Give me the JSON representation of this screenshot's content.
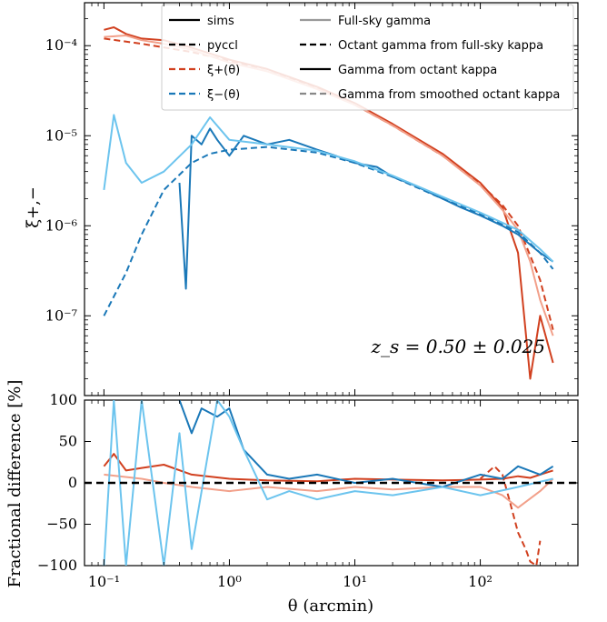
{
  "chart_data": {
    "type": "line",
    "xscale": "log",
    "xlim": [
      0.07,
      600
    ],
    "xlabel": "θ (arcmin)",
    "x_ticks": [
      "10⁻¹",
      "10⁰",
      "10¹",
      "10²"
    ],
    "annotation": "z_s = 0.50 ± 0.025",
    "legend_placement": "top-right",
    "legend": [
      {
        "label": "sims",
        "color": "#000000",
        "dash": "solid"
      },
      {
        "label": "pyccl",
        "color": "#000000",
        "dash": "dashed"
      },
      {
        "label": "ξ+(θ)",
        "color": "#d1401f",
        "dash": "dashed"
      },
      {
        "label": "ξ−(θ)",
        "color": "#1a78b8",
        "dash": "dashed"
      },
      {
        "label": "Full-sky gamma",
        "color": "#999999",
        "dash": "solid"
      },
      {
        "label": "Octant gamma from full-sky kappa",
        "color": "#000000",
        "dash": "dashed"
      },
      {
        "label": "Gamma from octant kappa",
        "color": "#000000",
        "dash": "solid"
      },
      {
        "label": "Gamma from smoothed octant kappa",
        "color": "#888888",
        "dash": "dashed"
      }
    ],
    "top_panel": {
      "ylabel": "ξ+,−",
      "yscale": "log",
      "ylim": [
        1.3e-08,
        0.0003
      ],
      "y_ticks": [
        "10⁻⁷",
        "10⁻⁶",
        "10⁻⁵",
        "10⁻⁴"
      ],
      "series": [
        {
          "name": "ξ+(θ)",
          "role": "pyccl",
          "color": "#d1401f",
          "dash": "dashed",
          "x": [
            0.1,
            0.2,
            0.5,
            1,
            2,
            5,
            10,
            20,
            50,
            100,
            150,
            200,
            300,
            380
          ],
          "y": [
            0.00012,
            0.000105,
            8.5e-05,
            6.8e-05,
            5.2e-05,
            3.4e-05,
            2.2e-05,
            1.3e-05,
            6e-06,
            2.9e-06,
            1.7e-06,
            1e-06,
            2.5e-07,
            7e-08
          ]
        },
        {
          "name": "ξ+(θ)",
          "role": "sims",
          "color": "#d1401f",
          "dash": "solid",
          "x": [
            0.1,
            0.12,
            0.15,
            0.2,
            0.3,
            0.5,
            1,
            2,
            5,
            10,
            20,
            50,
            100,
            150,
            200,
            250,
            300,
            380
          ],
          "y": [
            0.00015,
            0.00016,
            0.000135,
            0.00012,
            0.000115,
            9.5e-05,
            7e-05,
            5.5e-05,
            3.5e-05,
            2.3e-05,
            1.35e-05,
            6.3e-06,
            3e-06,
            1.6e-06,
            5e-07,
            2e-08,
            1e-07,
            3e-08
          ]
        },
        {
          "name": "ξ+(θ)",
          "role": "smoothed",
          "color": "#f2a08a",
          "dash": "solid",
          "x": [
            0.1,
            0.15,
            0.2,
            0.3,
            0.5,
            1,
            2,
            5,
            10,
            20,
            50,
            100,
            150,
            200,
            250,
            300,
            380
          ],
          "y": [
            0.000125,
            0.00013,
            0.000115,
            0.000105,
            9e-05,
            6.5e-05,
            5.2e-05,
            3.3e-05,
            2.2e-05,
            1.3e-05,
            6e-06,
            2.8e-06,
            1.5e-06,
            9e-07,
            4e-07,
            1.5e-07,
            6e-08
          ]
        },
        {
          "name": "ξ−(θ)",
          "role": "pyccl",
          "color": "#1a78b8",
          "dash": "dashed",
          "x": [
            0.1,
            0.15,
            0.2,
            0.3,
            0.5,
            0.7,
            1,
            2,
            5,
            10,
            20,
            50,
            100,
            200,
            300,
            380
          ],
          "y": [
            1e-07,
            3e-07,
            8e-07,
            2.5e-06,
            5e-06,
            6.3e-06,
            7e-06,
            7.5e-06,
            6.5e-06,
            5e-06,
            3.5e-06,
            2e-06,
            1.35e-06,
            8.5e-07,
            5e-07,
            3.3e-07
          ]
        },
        {
          "name": "ξ−(θ)",
          "role": "sims",
          "color": "#1a78b8",
          "dash": "solid",
          "x": [
            0.4,
            0.45,
            0.5,
            0.6,
            0.7,
            0.8,
            1,
            1.3,
            2,
            3,
            5,
            7,
            10,
            15,
            20,
            30,
            50,
            70,
            100,
            150,
            200,
            300,
            380
          ],
          "y": [
            3e-06,
            2e-07,
            1e-05,
            8e-06,
            1.2e-05,
            9e-06,
            6e-06,
            1e-05,
            8e-06,
            9e-06,
            7e-06,
            6e-06,
            5e-06,
            4.5e-06,
            3.5e-06,
            2.8e-06,
            2e-06,
            1.6e-06,
            1.3e-06,
            1e-06,
            8e-07,
            5e-07,
            4e-07
          ]
        },
        {
          "name": "ξ−(θ)",
          "role": "smoothed",
          "color": "#6cc4ee",
          "dash": "solid",
          "x": [
            0.1,
            0.12,
            0.15,
            0.2,
            0.3,
            0.5,
            0.7,
            1,
            2,
            5,
            10,
            20,
            50,
            100,
            200,
            300,
            380
          ],
          "y": [
            2.5e-06,
            1.7e-05,
            5e-06,
            3e-06,
            4e-06,
            8e-06,
            1.6e-05,
            9e-06,
            8e-06,
            6.8e-06,
            5.2e-06,
            3.6e-06,
            2.1e-06,
            1.4e-06,
            9e-07,
            5.5e-07,
            4e-07
          ]
        }
      ]
    },
    "bottom_panel": {
      "ylabel": "Fractional difference [%]",
      "ylim": [
        -100,
        100
      ],
      "y_ticks": [
        "−100",
        "−50",
        "0",
        "50",
        "100"
      ],
      "reference_line": 0,
      "series": [
        {
          "name": "ξ+(θ)",
          "role": "sims",
          "color": "#d1401f",
          "dash": "solid",
          "x": [
            0.1,
            0.12,
            0.15,
            0.2,
            0.3,
            0.5,
            1,
            2,
            5,
            10,
            20,
            50,
            100,
            150,
            200,
            250,
            300,
            380
          ],
          "y": [
            20,
            35,
            15,
            18,
            22,
            10,
            5,
            3,
            2,
            5,
            4,
            3,
            4,
            5,
            8,
            6,
            10,
            15
          ]
        },
        {
          "name": "ξ+(θ)",
          "role": "octant-from-full-sky",
          "color": "#d1401f",
          "dash": "dashed",
          "x": [
            100,
            130,
            150,
            170,
            200,
            230,
            250,
            280,
            300
          ],
          "y": [
            5,
            20,
            10,
            -20,
            -60,
            -80,
            -95,
            -100,
            -70
          ]
        },
        {
          "name": "ξ+(θ)",
          "role": "smoothed",
          "color": "#f2a08a",
          "dash": "solid",
          "x": [
            0.1,
            0.2,
            0.3,
            0.5,
            1,
            2,
            5,
            10,
            20,
            50,
            100,
            150,
            200,
            300,
            380
          ],
          "y": [
            10,
            5,
            0,
            -5,
            -10,
            -5,
            -10,
            -5,
            -8,
            -5,
            -5,
            -15,
            -30,
            -10,
            5
          ]
        },
        {
          "name": "ξ−(θ)",
          "role": "sims",
          "color": "#1a78b8",
          "dash": "solid",
          "x": [
            0.4,
            0.5,
            0.6,
            0.8,
            1,
            1.3,
            2,
            3,
            5,
            10,
            20,
            50,
            100,
            150,
            200,
            300,
            380
          ],
          "y": [
            100,
            60,
            90,
            80,
            90,
            40,
            10,
            5,
            10,
            0,
            5,
            -5,
            10,
            5,
            20,
            10,
            20
          ]
        },
        {
          "name": "ξ−(θ)",
          "role": "smoothed",
          "color": "#6cc4ee",
          "dash": "solid",
          "x": [
            0.1,
            0.12,
            0.15,
            0.2,
            0.3,
            0.4,
            0.5,
            0.8,
            1,
            1.3,
            2,
            3,
            5,
            10,
            20,
            50,
            100,
            200,
            380
          ],
          "y": [
            -100,
            100,
            -100,
            100,
            -100,
            60,
            -80,
            100,
            80,
            40,
            -20,
            -10,
            -20,
            -10,
            -15,
            -5,
            -15,
            -5,
            5
          ]
        }
      ]
    }
  }
}
